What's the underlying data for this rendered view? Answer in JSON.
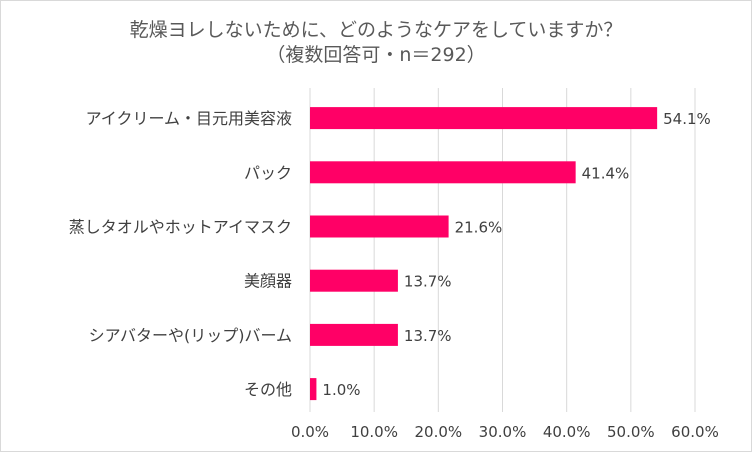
{
  "chart_data": {
    "type": "bar",
    "orientation": "horizontal",
    "title": "乾燥ヨレしないために、どのようなケアをしていますか？",
    "subtitle": "（複数回答可・n＝292）",
    "categories": [
      "アイクリーム・目元用美容液",
      "パック",
      "蒸しタオルやホットアイマスク",
      "美顔器",
      "シアバターや(リップ)バーム",
      "その他"
    ],
    "values": [
      54.1,
      41.4,
      21.6,
      13.7,
      13.7,
      1.0
    ],
    "value_labels": [
      "54.1%",
      "41.4%",
      "21.6%",
      "13.7%",
      "13.7%",
      "1.0%"
    ],
    "xlim": [
      0,
      60
    ],
    "ticks": [
      0,
      10,
      20,
      30,
      40,
      50,
      60
    ],
    "tick_labels": [
      "0.0%",
      "10.0%",
      "20.0%",
      "30.0%",
      "40.0%",
      "50.0%",
      "60.0%"
    ],
    "grid": true,
    "legend": "none",
    "colors": {
      "bar": "#ff0066",
      "grid": "#d9d9d9",
      "text": "#404040",
      "title": "#595959"
    }
  }
}
